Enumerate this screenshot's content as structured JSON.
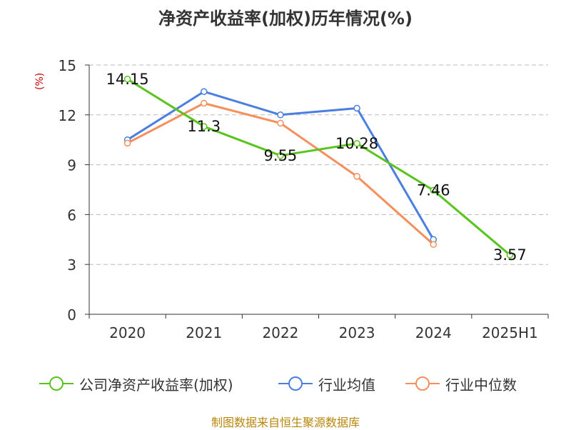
{
  "title": "净资产收益率(加权)历年情况(%)",
  "source_note": "制图数据来自恒生聚源数据库",
  "colors": {
    "company": "#5ac41e",
    "industry_mean": "#4a7fe0",
    "industry_median": "#f5905c",
    "axis": "#333333",
    "grid": "#bbbbbb",
    "ylabel": "#cc0000"
  },
  "chart_data": {
    "type": "line",
    "title": "净资产收益率(加权)历年情况(%)",
    "xlabel": "",
    "ylabel": "(%)",
    "categories": [
      "2020",
      "2021",
      "2022",
      "2023",
      "2024",
      "2025H1"
    ],
    "ylim": [
      0,
      15
    ],
    "yticks": [
      0,
      3,
      6,
      9,
      12,
      15
    ],
    "grid": true,
    "legend_position": "bottom",
    "series": [
      {
        "name": "公司净资产收益率(加权)",
        "values": [
          14.15,
          11.3,
          9.55,
          10.28,
          7.46,
          3.57
        ],
        "labels": [
          "14.15",
          "11.3",
          "9.55",
          "10.28",
          "7.46",
          "3.57"
        ]
      },
      {
        "name": "行业均值",
        "values": [
          10.5,
          13.4,
          12.0,
          12.4,
          4.5,
          null
        ]
      },
      {
        "name": "行业中位数",
        "values": [
          10.3,
          12.7,
          11.5,
          8.3,
          4.2,
          null
        ]
      }
    ]
  }
}
